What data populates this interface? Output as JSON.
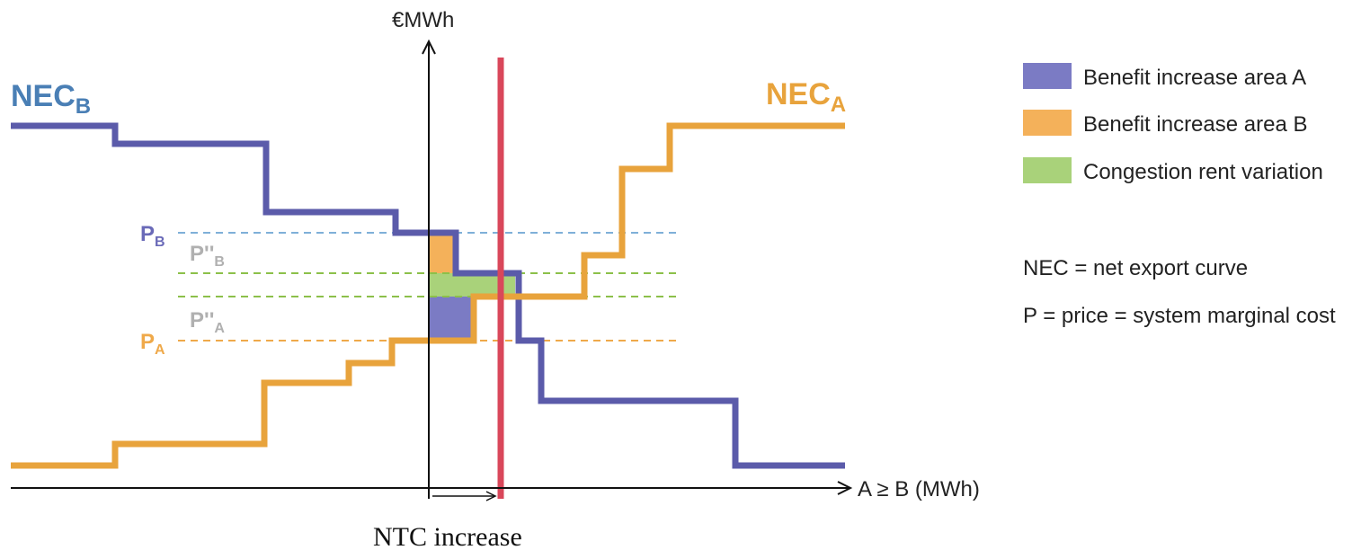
{
  "axes": {
    "y_label": "€MWh",
    "x_label": "A ≥ B (MWh)"
  },
  "ntc_label": "NTC increase",
  "curves": {
    "nec_b": {
      "main": "NEC",
      "sub": "B"
    },
    "nec_a": {
      "main": "NEC",
      "sub": "A"
    }
  },
  "prices": {
    "p_b": {
      "main": "P",
      "sub": "B"
    },
    "p2_b": {
      "main": "P''",
      "sub": "B"
    },
    "p2_a": {
      "main": "P''",
      "sub": "A"
    },
    "p_a": {
      "main": "P",
      "sub": "A"
    }
  },
  "legend": {
    "items": [
      {
        "label": "Benefit increase area A",
        "color": "#7b7bc4"
      },
      {
        "label": "Benefit increase area B",
        "color": "#f4b15a"
      },
      {
        "label": "Congestion rent variation",
        "color": "#a9d27a"
      }
    ],
    "notes": [
      "NEC = net export curve",
      "P = price = system marginal cost"
    ]
  },
  "colors": {
    "nec_b": "#5b5baa",
    "nec_a": "#e8a33c",
    "ntc_line": "#d9475a",
    "p_b_line": "#7fb0d8",
    "p2_line": "#8cc04a",
    "p_a_line": "#efa94a",
    "p2_label": "#b0b0b0"
  }
}
